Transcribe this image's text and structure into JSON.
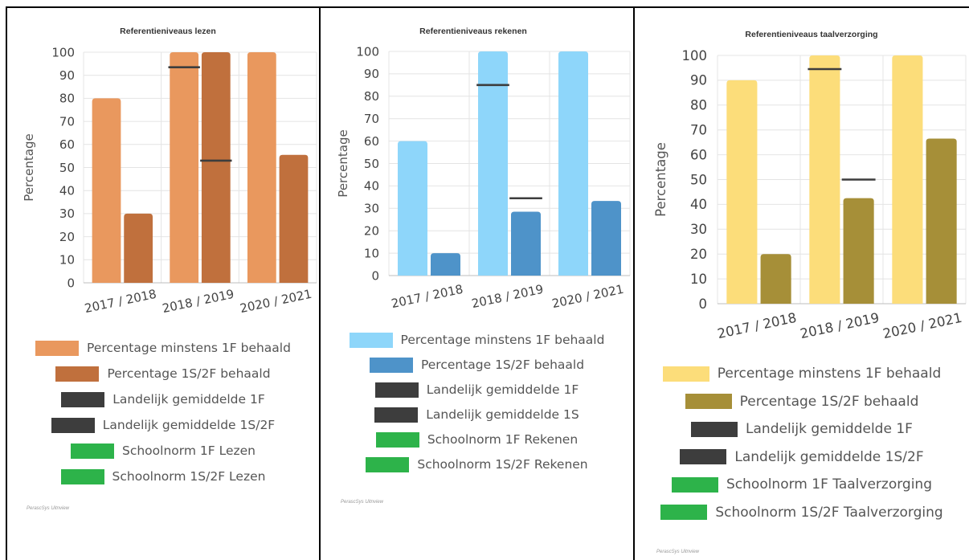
{
  "credit": "PerascSys Uitnview",
  "chart_data": [
    {
      "type": "bar",
      "title": "Referentieniveaus lezen",
      "ylabel": "Percentage",
      "xlabel": "",
      "ylim": [
        0,
        100
      ],
      "y_ticks": [
        "0",
        "10",
        "20",
        "30",
        "40",
        "50",
        "60",
        "70",
        "80",
        "90",
        "100"
      ],
      "categories": [
        "2017 / 2018",
        "2018 / 2019",
        "2020 / 2021"
      ],
      "series": [
        {
          "name": "Percentage minstens 1F behaald",
          "values": [
            80,
            100,
            100
          ],
          "color": "#E9985E"
        },
        {
          "name": "Percentage 1S/2F behaald",
          "values": [
            30,
            100,
            55.5
          ],
          "color": "#C0703D"
        }
      ],
      "averages": [
        {
          "name": "Landelijk gemiddelde 1F",
          "values": [
            null,
            93.5,
            null
          ]
        },
        {
          "name": "Landelijk gemiddelde 1S/2F",
          "values": [
            null,
            53,
            null
          ]
        }
      ],
      "legend": [
        {
          "label": "Percentage minstens 1F behaald",
          "color": "#E9985E"
        },
        {
          "label": "Percentage 1S/2F behaald",
          "color": "#C0703D"
        },
        {
          "label": "Landelijk gemiddelde 1F",
          "color": "#3D3D3D"
        },
        {
          "label": "Landelijk gemiddelde 1S/2F",
          "color": "#3D3D3D"
        },
        {
          "label": "Schoolnorm 1F Lezen",
          "color": "#2DB34A"
        },
        {
          "label": "Schoolnorm 1S/2F Lezen",
          "color": "#2DB34A"
        }
      ],
      "legend_placement": "bottom",
      "grid": true
    },
    {
      "type": "bar",
      "title": "Referentieniveaus rekenen",
      "ylabel": "Percentage",
      "xlabel": "",
      "ylim": [
        0,
        100
      ],
      "y_ticks": [
        "0",
        "10",
        "20",
        "30",
        "40",
        "50",
        "60",
        "70",
        "80",
        "90",
        "100"
      ],
      "categories": [
        "2017 / 2018",
        "2018 / 2019",
        "2020 / 2021"
      ],
      "series": [
        {
          "name": "Percentage minstens 1F behaald",
          "values": [
            60,
            100,
            100
          ],
          "color": "#8ED6FA"
        },
        {
          "name": "Percentage 1S/2F behaald",
          "values": [
            10,
            28.5,
            33.3
          ],
          "color": "#4E93C9"
        }
      ],
      "averages": [
        {
          "name": "Landelijk gemiddelde 1F",
          "values": [
            null,
            85,
            null
          ]
        },
        {
          "name": "Landelijk gemiddelde 1S",
          "values": [
            null,
            34.5,
            null
          ]
        }
      ],
      "legend": [
        {
          "label": "Percentage minstens 1F behaald",
          "color": "#8ED6FA"
        },
        {
          "label": "Percentage 1S/2F behaald",
          "color": "#4E93C9"
        },
        {
          "label": "Landelijk gemiddelde 1F",
          "color": "#3D3D3D"
        },
        {
          "label": "Landelijk gemiddelde 1S",
          "color": "#3D3D3D"
        },
        {
          "label": "Schoolnorm 1F Rekenen",
          "color": "#2DB34A"
        },
        {
          "label": "Schoolnorm 1S/2F Rekenen",
          "color": "#2DB34A"
        }
      ],
      "legend_placement": "bottom",
      "grid": true
    },
    {
      "type": "bar",
      "title": "Referentieniveaus taalverzorging",
      "ylabel": "Percentage",
      "xlabel": "",
      "ylim": [
        0,
        100
      ],
      "y_ticks": [
        "0",
        "10",
        "20",
        "30",
        "40",
        "50",
        "60",
        "70",
        "80",
        "90",
        "100"
      ],
      "categories": [
        "2017 / 2018",
        "2018 / 2019",
        "2020 / 2021"
      ],
      "series": [
        {
          "name": "Percentage minstens 1F behaald",
          "values": [
            90,
            100,
            100
          ],
          "color": "#FCDD7A"
        },
        {
          "name": "Percentage 1S/2F behaald",
          "values": [
            20,
            42.5,
            66.5
          ],
          "color": "#A68F38"
        }
      ],
      "averages": [
        {
          "name": "Landelijk gemiddelde 1F",
          "values": [
            null,
            94.5,
            null
          ]
        },
        {
          "name": "Landelijk gemiddelde 1S/2F",
          "values": [
            null,
            50,
            null
          ]
        }
      ],
      "legend": [
        {
          "label": "Percentage minstens 1F behaald",
          "color": "#FCDD7A"
        },
        {
          "label": "Percentage 1S/2F behaald",
          "color": "#A68F38"
        },
        {
          "label": "Landelijk gemiddelde 1F",
          "color": "#3D3D3D"
        },
        {
          "label": "Landelijk gemiddelde 1S/2F",
          "color": "#3D3D3D"
        },
        {
          "label": "Schoolnorm 1F Taalverzorging",
          "color": "#2DB34A"
        },
        {
          "label": "Schoolnorm 1S/2F Taalverzorging",
          "color": "#2DB34A"
        }
      ],
      "legend_placement": "bottom",
      "grid": true
    }
  ]
}
